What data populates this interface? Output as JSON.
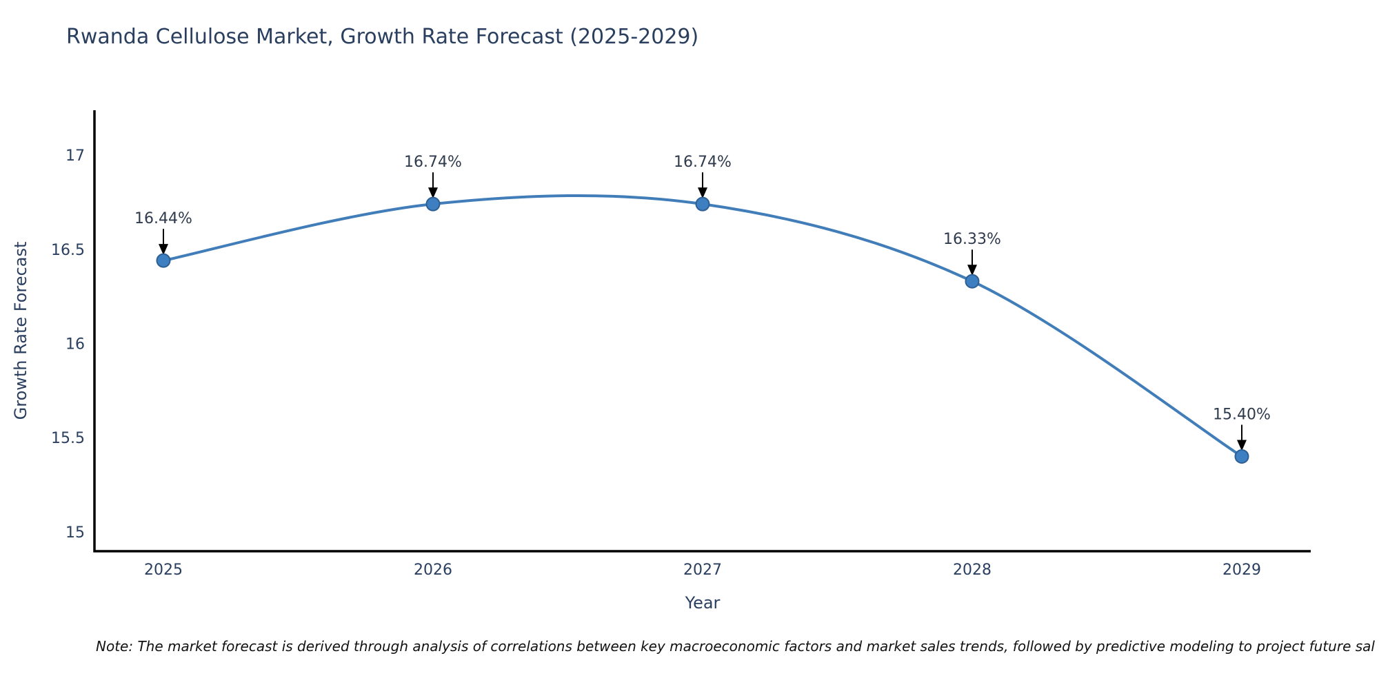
{
  "page": {
    "background_color": "#ffffff"
  },
  "chart_data": {
    "type": "line",
    "title": "Rwanda Cellulose Market, Growth Rate Forecast (2025-2029)",
    "xlabel": "Year",
    "ylabel": "Growth Rate Forecast",
    "categories": [
      "2025",
      "2026",
      "2027",
      "2028",
      "2029"
    ],
    "values": [
      16.44,
      16.74,
      16.74,
      16.33,
      15.4
    ],
    "point_labels": [
      "16.44%",
      "16.74%",
      "16.74%",
      "16.33%",
      "15.40%"
    ],
    "yticks": [
      15,
      15.5,
      16,
      16.5,
      17
    ],
    "ytick_labels": [
      "15",
      "15.5",
      "16",
      "16.5",
      "17"
    ],
    "ylim": [
      14.897,
      17.238
    ],
    "line_shape": "spline",
    "grid": false,
    "legend": "none",
    "colors": {
      "line": "#417db9",
      "marker_fill": "#3d7fc1",
      "marker_edge": "#2e5f94",
      "axis_line": "#000000",
      "tick_text": "#2a3f5f",
      "title_text": "#2a3f5f",
      "annotation_text": "#2f3b4c",
      "arrow": "#000000"
    }
  },
  "note": {
    "text": "Note: The market forecast is derived through analysis of correlations between key macroeconomic factors and market sales trends, followed by predictive modeling to project future sal"
  }
}
